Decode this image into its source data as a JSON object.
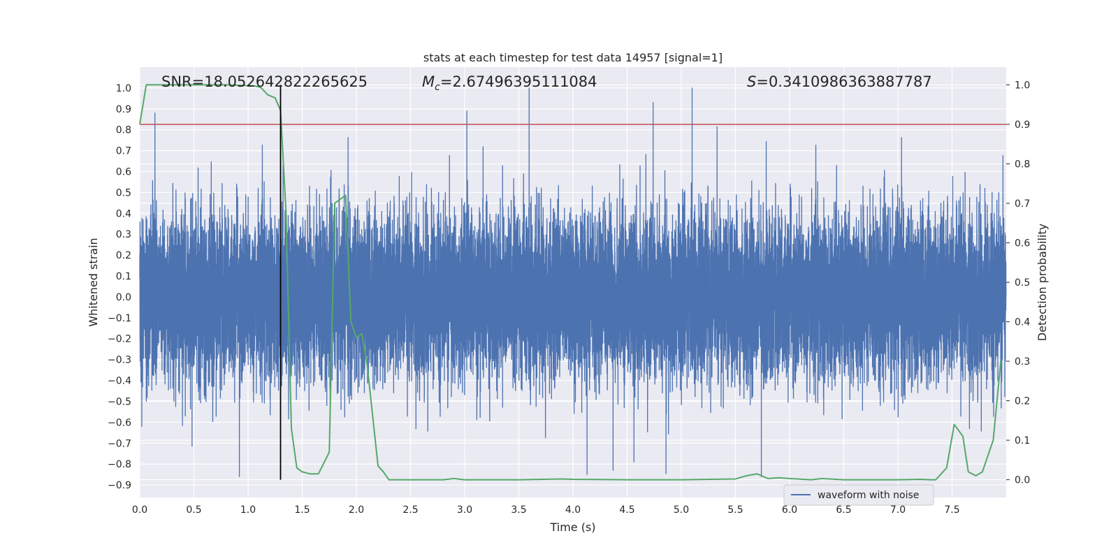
{
  "chart_data": {
    "type": "line",
    "title": "stats at each timestep for test data 14957 [signal=1]",
    "xlabel": "Time (s)",
    "ylabel": "Whitened strain",
    "ylabel_right": "Detection probability",
    "xlim": [
      0.0,
      8.0
    ],
    "ylim": [
      -0.96,
      1.1
    ],
    "ylim_right": [
      -0.045,
      1.045
    ],
    "x_ticks": [
      0.0,
      0.5,
      1.0,
      1.5,
      2.0,
      2.5,
      3.0,
      3.5,
      4.0,
      4.5,
      5.0,
      5.5,
      6.0,
      6.5,
      7.0,
      7.5
    ],
    "x_tick_labels": [
      "0.0",
      "0.5",
      "1.0",
      "1.5",
      "2.0",
      "2.5",
      "3.0",
      "3.5",
      "4.0",
      "4.5",
      "5.0",
      "5.5",
      "6.0",
      "6.5",
      "7.0",
      "7.5"
    ],
    "y_ticks": [
      -0.9,
      -0.8,
      -0.7,
      -0.6,
      -0.5,
      -0.4,
      -0.3,
      -0.2,
      -0.1,
      0.0,
      0.1,
      0.2,
      0.3,
      0.4,
      0.5,
      0.6,
      0.7,
      0.8,
      0.9,
      1.0
    ],
    "y_tick_labels": [
      "−0.9",
      "−0.8",
      "−0.7",
      "−0.6",
      "−0.5",
      "−0.4",
      "−0.3",
      "−0.2",
      "−0.1",
      "0.0",
      "0.1",
      "0.2",
      "0.3",
      "0.4",
      "0.5",
      "0.6",
      "0.7",
      "0.8",
      "0.9",
      "1.0"
    ],
    "y_ticks_right": [
      0.0,
      0.1,
      0.2,
      0.3,
      0.4,
      0.5,
      0.6,
      0.7,
      0.8,
      0.9,
      1.0
    ],
    "y_tick_labels_right": [
      "0.0",
      "0.1",
      "0.2",
      "0.3",
      "0.4",
      "0.5",
      "0.6",
      "0.7",
      "0.8",
      "0.9",
      "1.0"
    ],
    "annotations": {
      "snr": "SNR=18.052642822265625",
      "mc_symbol": "M",
      "mc_sub": "c",
      "mc_value": "=2.67496395111084",
      "s_symbol": "S",
      "s_value": "=0.3410986363887787"
    },
    "grid": true,
    "legend": {
      "position": "lower-right",
      "entries": [
        "waveform with noise"
      ]
    },
    "threshold_right": 0.9,
    "marker_time": 1.3,
    "colors": {
      "waveform": "#4c72b0",
      "probability": "#55a868",
      "threshold": "#c44e52",
      "marker": "#000000",
      "plot_bg": "#eaeaf2",
      "grid": "#ffffff"
    },
    "series": [
      {
        "name": "waveform with noise",
        "axis": "left",
        "sample_rate": 2048,
        "envelope_max": 1.0,
        "envelope_min": -0.86,
        "notable_peaks": [
          [
            0.14,
            0.88
          ],
          [
            3.02,
            0.89
          ],
          [
            4.74,
            0.93
          ],
          [
            5.1,
            1.0
          ],
          [
            0.92,
            -0.86
          ],
          [
            4.13,
            -0.85
          ],
          [
            4.37,
            -0.83
          ]
        ]
      },
      {
        "axis": "right",
        "x": [
          0.0,
          0.06,
          0.12,
          0.2,
          0.4,
          0.6,
          0.8,
          0.9,
          1.0,
          1.07,
          1.12,
          1.18,
          1.25,
          1.3,
          1.35,
          1.4,
          1.45,
          1.5,
          1.57,
          1.65,
          1.75,
          1.8,
          1.85,
          1.9,
          1.95,
          2.0,
          2.05,
          2.1,
          2.2,
          2.25,
          2.3,
          2.4,
          2.6,
          2.8,
          2.9,
          3.0,
          3.5,
          3.9,
          4.0,
          4.5,
          5.0,
          5.5,
          5.6,
          5.7,
          5.8,
          5.9,
          6.0,
          6.2,
          6.3,
          6.5,
          7.0,
          7.2,
          7.3,
          7.35,
          7.45,
          7.52,
          7.6,
          7.65,
          7.72,
          7.78,
          7.88,
          7.95
        ],
        "values": [
          0.9,
          1.0,
          1.0,
          1.0,
          1.0,
          1.0,
          1.0,
          0.999,
          0.998,
          0.997,
          0.993,
          0.975,
          0.967,
          0.935,
          0.68,
          0.13,
          0.03,
          0.02,
          0.015,
          0.015,
          0.07,
          0.7,
          0.71,
          0.72,
          0.4,
          0.36,
          0.37,
          0.29,
          0.035,
          0.02,
          0.0,
          0.0,
          0.0,
          0.0,
          0.003,
          0.0,
          0.0,
          0.002,
          0.001,
          0.0,
          0.0,
          0.002,
          0.01,
          0.015,
          0.003,
          0.005,
          0.003,
          0.0,
          0.003,
          0.0,
          0.0,
          0.001,
          0.0,
          0.0,
          0.03,
          0.14,
          0.11,
          0.02,
          0.01,
          0.02,
          0.1,
          0.3
        ]
      }
    ]
  }
}
